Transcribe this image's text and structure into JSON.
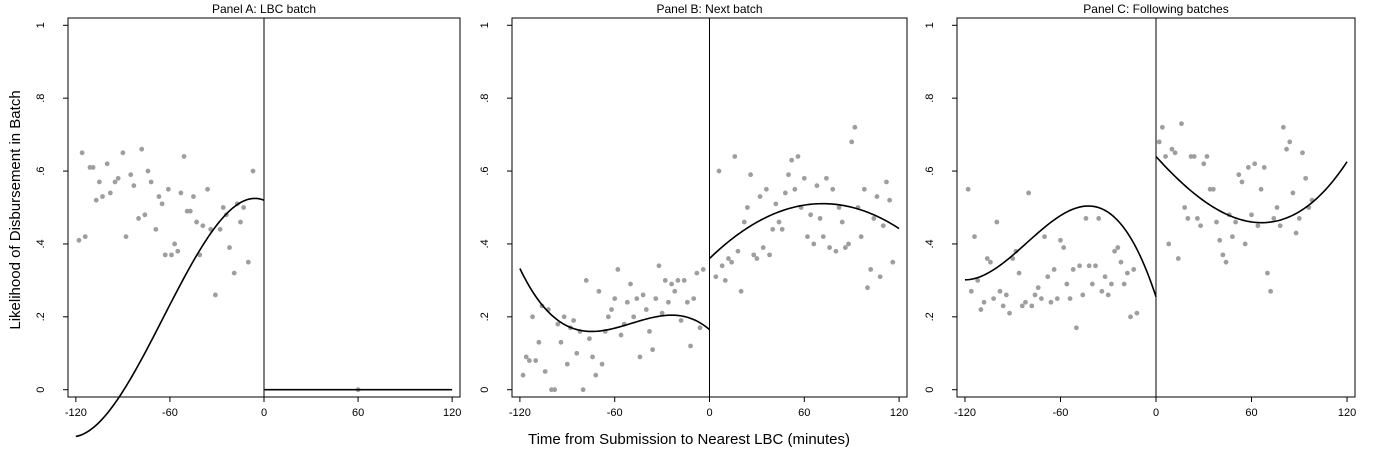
{
  "figure": {
    "ylabel": "Likelihood of Disbursement in Batch",
    "xlabel": "Time from Submission to Nearest LBC (minutes)"
  },
  "chart_data": [
    {
      "type": "scatter",
      "title": "Panel A: LBC batch",
      "xlim": [
        -125,
        125
      ],
      "ylim": [
        -0.02,
        1.02
      ],
      "xticks": [
        -120,
        -60,
        0,
        60,
        120
      ],
      "yticks": [
        0,
        0.2,
        0.4,
        0.6,
        0.8,
        1
      ],
      "ytick_labels": [
        "0",
        ".2",
        ".4",
        ".6",
        ".8",
        "1"
      ],
      "cutoff": 0,
      "points": [
        [
          -118,
          0.41
        ],
        [
          -116,
          0.65
        ],
        [
          -114,
          0.42
        ],
        [
          -111,
          0.61
        ],
        [
          -109,
          0.61
        ],
        [
          -107,
          0.52
        ],
        [
          -105,
          0.57
        ],
        [
          -103,
          0.53
        ],
        [
          -100,
          0.62
        ],
        [
          -98,
          0.54
        ],
        [
          -95,
          0.57
        ],
        [
          -93,
          0.58
        ],
        [
          -90,
          0.65
        ],
        [
          -88,
          0.42
        ],
        [
          -85,
          0.59
        ],
        [
          -83,
          0.56
        ],
        [
          -80,
          0.47
        ],
        [
          -78,
          0.66
        ],
        [
          -76,
          0.48
        ],
        [
          -74,
          0.6
        ],
        [
          -72,
          0.57
        ],
        [
          -69,
          0.44
        ],
        [
          -67,
          0.53
        ],
        [
          -65,
          0.51
        ],
        [
          -63,
          0.37
        ],
        [
          -61,
          0.55
        ],
        [
          -59,
          0.37
        ],
        [
          -57,
          0.4
        ],
        [
          -55,
          0.38
        ],
        [
          -53,
          0.54
        ],
        [
          -51,
          0.64
        ],
        [
          -49,
          0.49
        ],
        [
          -47,
          0.49
        ],
        [
          -45,
          0.53
        ],
        [
          -43,
          0.46
        ],
        [
          -41,
          0.37
        ],
        [
          -39,
          0.45
        ],
        [
          -36,
          0.55
        ],
        [
          -34,
          0.44
        ],
        [
          -31,
          0.26
        ],
        [
          -28,
          0.44
        ],
        [
          -26,
          0.5
        ],
        [
          -24,
          0.48
        ],
        [
          -22,
          0.39
        ],
        [
          -19,
          0.32
        ],
        [
          -17,
          0.51
        ],
        [
          -15,
          0.46
        ],
        [
          -13,
          0.5
        ],
        [
          -10,
          0.35
        ],
        [
          -7,
          0.6
        ],
        [
          60,
          0.0
        ]
      ],
      "fits": [
        {
          "x_range": [
            -120,
            0
          ],
          "coef": [
            0.52,
            -0.00175,
            -0.000158,
            -8.2e-07
          ]
        },
        {
          "x_range": [
            0,
            120
          ],
          "coef": [
            0.0,
            0.0,
            0.0,
            0.0
          ]
        }
      ]
    },
    {
      "type": "scatter",
      "title": "Panel B: Next batch",
      "xlim": [
        -125,
        125
      ],
      "ylim": [
        -0.02,
        1.02
      ],
      "xticks": [
        -120,
        -60,
        0,
        60,
        120
      ],
      "yticks": [
        0,
        0.2,
        0.4,
        0.6,
        0.8,
        1
      ],
      "ytick_labels": [
        "0",
        ".2",
        ".4",
        ".6",
        ".8",
        "1"
      ],
      "cutoff": 0,
      "points": [
        [
          -118,
          0.04
        ],
        [
          -116,
          0.09
        ],
        [
          -114,
          0.08
        ],
        [
          -112,
          0.2
        ],
        [
          -110,
          0.08
        ],
        [
          -108,
          0.13
        ],
        [
          -106,
          0.23
        ],
        [
          -104,
          0.05
        ],
        [
          -102,
          0.22
        ],
        [
          -100,
          0.0
        ],
        [
          -98,
          0.0
        ],
        [
          -96,
          0.18
        ],
        [
          -94,
          0.13
        ],
        [
          -92,
          0.2
        ],
        [
          -90,
          0.07
        ],
        [
          -88,
          0.17
        ],
        [
          -86,
          0.19
        ],
        [
          -84,
          0.1
        ],
        [
          -82,
          0.16
        ],
        [
          -80,
          0.0
        ],
        [
          -78,
          0.3
        ],
        [
          -76,
          0.14
        ],
        [
          -74,
          0.09
        ],
        [
          -72,
          0.04
        ],
        [
          -70,
          0.27
        ],
        [
          -68,
          0.07
        ],
        [
          -66,
          0.16
        ],
        [
          -64,
          0.2
        ],
        [
          -62,
          0.22
        ],
        [
          -60,
          0.25
        ],
        [
          -58,
          0.33
        ],
        [
          -56,
          0.15
        ],
        [
          -54,
          0.18
        ],
        [
          -52,
          0.24
        ],
        [
          -50,
          0.29
        ],
        [
          -48,
          0.2
        ],
        [
          -46,
          0.25
        ],
        [
          -44,
          0.09
        ],
        [
          -42,
          0.26
        ],
        [
          -40,
          0.22
        ],
        [
          -38,
          0.16
        ],
        [
          -36,
          0.11
        ],
        [
          -34,
          0.25
        ],
        [
          -32,
          0.34
        ],
        [
          -30,
          0.21
        ],
        [
          -28,
          0.3
        ],
        [
          -26,
          0.24
        ],
        [
          -24,
          0.29
        ],
        [
          -22,
          0.27
        ],
        [
          -20,
          0.3
        ],
        [
          -18,
          0.19
        ],
        [
          -16,
          0.3
        ],
        [
          -14,
          0.24
        ],
        [
          -12,
          0.12
        ],
        [
          -10,
          0.25
        ],
        [
          -8,
          0.32
        ],
        [
          -6,
          0.17
        ],
        [
          -4,
          0.33
        ],
        [
          4,
          0.31
        ],
        [
          6,
          0.6
        ],
        [
          8,
          0.34
        ],
        [
          10,
          0.3
        ],
        [
          12,
          0.36
        ],
        [
          14,
          0.35
        ],
        [
          16,
          0.64
        ],
        [
          18,
          0.38
        ],
        [
          20,
          0.27
        ],
        [
          22,
          0.46
        ],
        [
          24,
          0.5
        ],
        [
          26,
          0.59
        ],
        [
          28,
          0.37
        ],
        [
          30,
          0.36
        ],
        [
          32,
          0.53
        ],
        [
          34,
          0.39
        ],
        [
          36,
          0.55
        ],
        [
          38,
          0.37
        ],
        [
          40,
          0.44
        ],
        [
          42,
          0.51
        ],
        [
          44,
          0.46
        ],
        [
          46,
          0.44
        ],
        [
          48,
          0.54
        ],
        [
          50,
          0.59
        ],
        [
          52,
          0.63
        ],
        [
          54,
          0.55
        ],
        [
          56,
          0.64
        ],
        [
          58,
          0.5
        ],
        [
          60,
          0.58
        ],
        [
          62,
          0.42
        ],
        [
          64,
          0.48
        ],
        [
          66,
          0.4
        ],
        [
          68,
          0.56
        ],
        [
          70,
          0.47
        ],
        [
          72,
          0.42
        ],
        [
          74,
          0.58
        ],
        [
          76,
          0.39
        ],
        [
          78,
          0.55
        ],
        [
          80,
          0.38
        ],
        [
          82,
          0.5
        ],
        [
          84,
          0.46
        ],
        [
          86,
          0.39
        ],
        [
          88,
          0.4
        ],
        [
          90,
          0.68
        ],
        [
          92,
          0.72
        ],
        [
          94,
          0.5
        ],
        [
          96,
          0.42
        ],
        [
          98,
          0.55
        ],
        [
          100,
          0.28
        ],
        [
          102,
          0.33
        ],
        [
          104,
          0.47
        ],
        [
          106,
          0.53
        ],
        [
          108,
          0.31
        ],
        [
          110,
          0.45
        ],
        [
          112,
          0.57
        ],
        [
          114,
          0.52
        ],
        [
          116,
          0.35
        ]
      ],
      "fits": [
        {
          "x_range": [
            -120,
            0
          ],
          "coef": [
            0.165,
            -0.0037,
            -0.000102,
            -6.9e-07
          ]
        },
        {
          "x_range": [
            0,
            120
          ],
          "coef": [
            0.36,
            0.0042,
            -2.93e-05,
            0.0
          ]
        }
      ]
    },
    {
      "type": "scatter",
      "title": "Panel C: Following batches",
      "xlim": [
        -125,
        125
      ],
      "ylim": [
        -0.02,
        1.02
      ],
      "xticks": [
        -120,
        -60,
        0,
        60,
        120
      ],
      "yticks": [
        0,
        0.2,
        0.4,
        0.6,
        0.8,
        1
      ],
      "ytick_labels": [
        "0",
        ".2",
        ".4",
        ".6",
        ".8",
        "1"
      ],
      "cutoff": 0,
      "points": [
        [
          -118,
          0.55
        ],
        [
          -116,
          0.27
        ],
        [
          -114,
          0.42
        ],
        [
          -112,
          0.3
        ],
        [
          -110,
          0.22
        ],
        [
          -108,
          0.24
        ],
        [
          -106,
          0.36
        ],
        [
          -104,
          0.35
        ],
        [
          -102,
          0.25
        ],
        [
          -100,
          0.46
        ],
        [
          -98,
          0.27
        ],
        [
          -96,
          0.23
        ],
        [
          -94,
          0.26
        ],
        [
          -92,
          0.21
        ],
        [
          -90,
          0.36
        ],
        [
          -88,
          0.38
        ],
        [
          -86,
          0.32
        ],
        [
          -84,
          0.23
        ],
        [
          -82,
          0.24
        ],
        [
          -80,
          0.54
        ],
        [
          -78,
          0.23
        ],
        [
          -76,
          0.26
        ],
        [
          -74,
          0.28
        ],
        [
          -72,
          0.25
        ],
        [
          -70,
          0.42
        ],
        [
          -68,
          0.31
        ],
        [
          -66,
          0.24
        ],
        [
          -64,
          0.33
        ],
        [
          -62,
          0.25
        ],
        [
          -60,
          0.41
        ],
        [
          -58,
          0.39
        ],
        [
          -56,
          0.29
        ],
        [
          -54,
          0.25
        ],
        [
          -52,
          0.33
        ],
        [
          -50,
          0.17
        ],
        [
          -48,
          0.34
        ],
        [
          -46,
          0.26
        ],
        [
          -44,
          0.47
        ],
        [
          -42,
          0.34
        ],
        [
          -40,
          0.29
        ],
        [
          -38,
          0.34
        ],
        [
          -36,
          0.47
        ],
        [
          -34,
          0.27
        ],
        [
          -32,
          0.31
        ],
        [
          -30,
          0.26
        ],
        [
          -28,
          0.29
        ],
        [
          -26,
          0.38
        ],
        [
          -24,
          0.39
        ],
        [
          -22,
          0.35
        ],
        [
          -20,
          0.29
        ],
        [
          -18,
          0.32
        ],
        [
          -16,
          0.2
        ],
        [
          -14,
          0.33
        ],
        [
          -12,
          0.21
        ],
        [
          2,
          0.68
        ],
        [
          4,
          0.72
        ],
        [
          6,
          0.64
        ],
        [
          8,
          0.4
        ],
        [
          10,
          0.66
        ],
        [
          12,
          0.65
        ],
        [
          14,
          0.36
        ],
        [
          16,
          0.73
        ],
        [
          18,
          0.5
        ],
        [
          20,
          0.47
        ],
        [
          22,
          0.64
        ],
        [
          24,
          0.64
        ],
        [
          26,
          0.47
        ],
        [
          28,
          0.45
        ],
        [
          30,
          0.62
        ],
        [
          32,
          0.64
        ],
        [
          34,
          0.55
        ],
        [
          36,
          0.55
        ],
        [
          38,
          0.46
        ],
        [
          40,
          0.41
        ],
        [
          42,
          0.37
        ],
        [
          44,
          0.35
        ],
        [
          46,
          0.48
        ],
        [
          48,
          0.42
        ],
        [
          50,
          0.46
        ],
        [
          52,
          0.59
        ],
        [
          54,
          0.57
        ],
        [
          56,
          0.4
        ],
        [
          58,
          0.61
        ],
        [
          60,
          0.48
        ],
        [
          62,
          0.62
        ],
        [
          64,
          0.45
        ],
        [
          66,
          0.55
        ],
        [
          68,
          0.61
        ],
        [
          70,
          0.32
        ],
        [
          72,
          0.27
        ],
        [
          74,
          0.47
        ],
        [
          76,
          0.5
        ],
        [
          78,
          0.45
        ],
        [
          80,
          0.72
        ],
        [
          82,
          0.66
        ],
        [
          84,
          0.68
        ],
        [
          86,
          0.54
        ],
        [
          88,
          0.43
        ],
        [
          90,
          0.47
        ],
        [
          92,
          0.65
        ],
        [
          94,
          0.58
        ],
        [
          96,
          0.5
        ],
        [
          98,
          0.52
        ]
      ],
      "fits": [
        {
          "x_range": [
            -120,
            0
          ],
          "coef": [
            0.255,
            -0.0133,
            -0.000212,
            -8.7e-07
          ]
        },
        {
          "x_range": [
            0,
            120
          ],
          "coef": [
            0.64,
            -0.00486,
            2.27e-05,
            1.4e-07
          ]
        }
      ]
    }
  ]
}
